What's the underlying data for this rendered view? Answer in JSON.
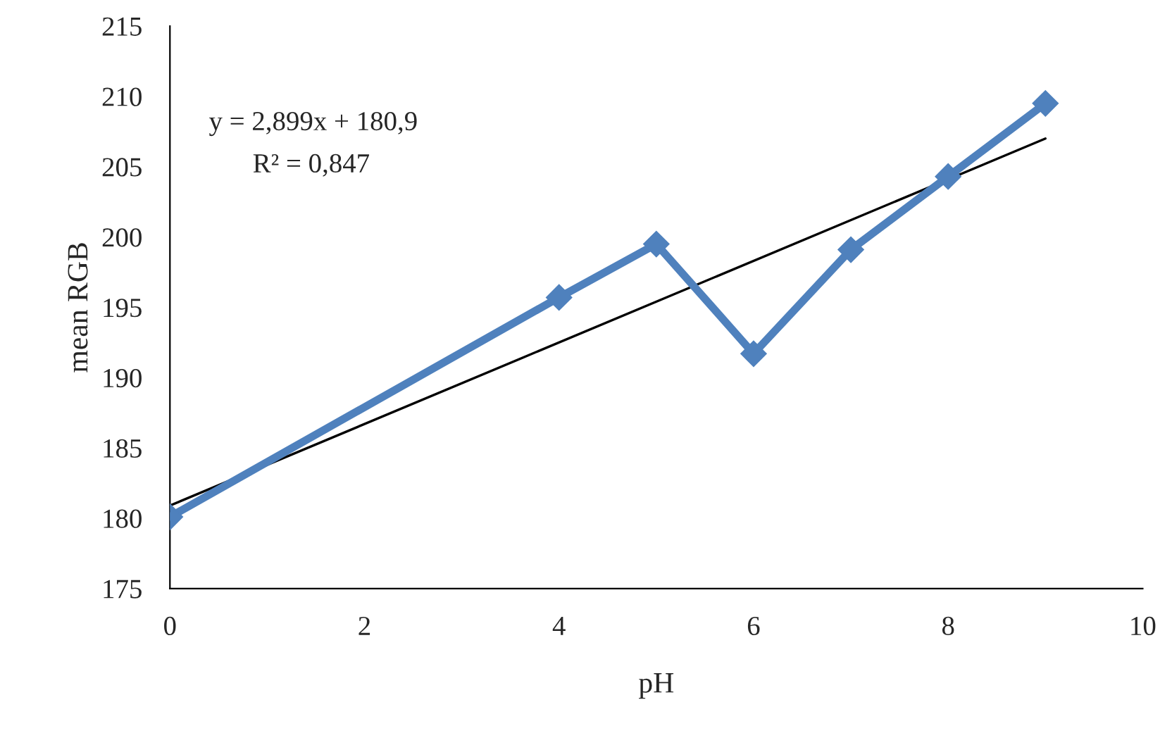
{
  "chart_data": {
    "type": "line",
    "xlabel": "pH",
    "ylabel": "mean RGB",
    "series": [
      {
        "color": "#4f81bd",
        "marker": "diamond",
        "x": [
          0,
          4,
          5,
          6,
          7,
          8,
          9
        ],
        "values": [
          180.1,
          195.7,
          199.5,
          191.7,
          199.1,
          204.3,
          209.5
        ]
      },
      {
        "color": "#000000",
        "marker": "none",
        "x": [
          0,
          9
        ],
        "values": [
          180.9,
          207.0
        ]
      }
    ],
    "annotations": [
      {
        "text": "y = 2,899x + 180,9"
      },
      {
        "text": "R² = 0,847"
      }
    ],
    "xlim": [
      0,
      10
    ],
    "xticks": [
      0,
      2,
      4,
      6,
      8,
      10
    ],
    "ylim": [
      175,
      215
    ],
    "yticks": [
      175,
      180,
      185,
      190,
      195,
      200,
      205,
      210,
      215
    ],
    "grid": false
  }
}
